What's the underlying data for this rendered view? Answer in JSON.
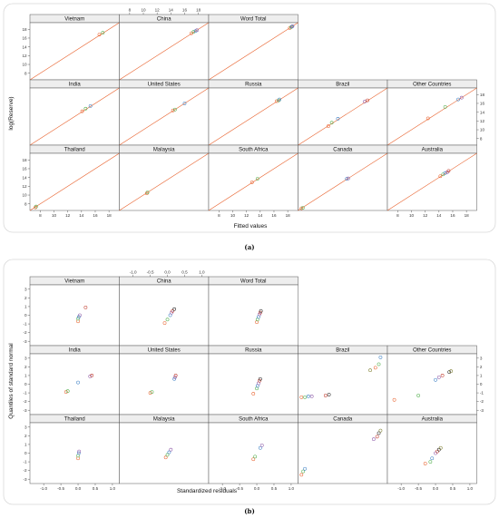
{
  "colors": {
    "page_bg": "#ffffff",
    "figure_border": "#d9d9d9",
    "strip_bg": "#eeeeee",
    "panel_border": "#555555",
    "ref_line": "#e8612c",
    "point_palette": [
      "#e8612c",
      "#4fae4a",
      "#3b7fc4",
      "#8e5aa8",
      "#c0392b",
      "#222222",
      "#7b7b2b"
    ]
  },
  "figure_a": {
    "caption": "(a)",
    "xlabel": "Fitted values",
    "ylabel": "log(Reserve)"
  },
  "figure_b": {
    "caption": "(b)",
    "xlabel": "Standardized residuals",
    "ylabel": "Quantiles of standard normal"
  },
  "chart_data": [
    {
      "type": "scatter",
      "title": "",
      "xlabel": "Fitted values",
      "ylabel": "log(Reserve)",
      "xlim": [
        6.5,
        19.5
      ],
      "ylim": [
        6.5,
        19.5
      ],
      "xticks": [
        "8",
        "10",
        "12",
        "14",
        "16",
        "18"
      ],
      "yticks": [
        "8",
        "10",
        "12",
        "14",
        "16",
        "18"
      ],
      "reference_line": "y = x",
      "grid": false,
      "legend": "none",
      "panels": [
        {
          "name": "Vietnam",
          "points": [
            [
              16.6,
              16.8
            ],
            [
              17.1,
              17.2
            ]
          ]
        },
        {
          "name": "China",
          "points": [
            [
              17.0,
              17.1
            ],
            [
              17.3,
              17.4
            ],
            [
              17.6,
              17.6
            ],
            [
              17.8,
              17.8
            ]
          ]
        },
        {
          "name": "Word Total",
          "points": [
            [
              18.3,
              18.3
            ],
            [
              18.5,
              18.5
            ],
            [
              18.6,
              18.6
            ],
            [
              18.7,
              18.7
            ]
          ]
        },
        {
          "name": "India",
          "points": [
            [
              14.1,
              14.2
            ],
            [
              14.6,
              14.8
            ],
            [
              15.3,
              15.4
            ]
          ]
        },
        {
          "name": "United States",
          "points": [
            [
              14.3,
              14.4
            ],
            [
              14.6,
              14.6
            ],
            [
              16.0,
              16.0
            ]
          ]
        },
        {
          "name": "Russia",
          "points": [
            [
              16.4,
              16.5
            ],
            [
              16.7,
              16.7
            ],
            [
              16.8,
              16.9
            ]
          ]
        },
        {
          "name": "Brazil",
          "points": [
            [
              10.9,
              10.8
            ],
            [
              11.4,
              11.6
            ],
            [
              12.3,
              12.5
            ],
            [
              16.2,
              16.4
            ],
            [
              16.6,
              16.7
            ]
          ]
        },
        {
          "name": "Other Countries",
          "points": [
            [
              12.4,
              12.6
            ],
            [
              14.9,
              15.2
            ],
            [
              16.8,
              16.9
            ],
            [
              17.3,
              17.3
            ]
          ]
        },
        {
          "name": "Thailand",
          "points": [
            [
              7.3,
              7.2
            ],
            [
              7.4,
              7.4
            ]
          ]
        },
        {
          "name": "Malaysia",
          "points": [
            [
              10.5,
              10.4
            ],
            [
              10.6,
              10.6
            ]
          ]
        },
        {
          "name": "South Africa",
          "points": [
            [
              12.8,
              12.9
            ],
            [
              13.6,
              13.7
            ]
          ]
        },
        {
          "name": "Canada",
          "points": [
            [
              7.0,
              7.0
            ],
            [
              7.2,
              7.1
            ],
            [
              13.6,
              13.7
            ],
            [
              13.8,
              13.8
            ]
          ]
        },
        {
          "name": "Australia",
          "points": [
            [
              14.2,
              14.3
            ],
            [
              14.6,
              14.7
            ],
            [
              14.9,
              15.0
            ],
            [
              15.2,
              15.2
            ],
            [
              15.4,
              15.5
            ]
          ]
        }
      ]
    },
    {
      "type": "scatter",
      "title": "",
      "xlabel": "Standardized residuals",
      "ylabel": "Quantiles of standard normal",
      "xlim": [
        -1.4,
        1.2
      ],
      "ylim": [
        -3.5,
        3.5
      ],
      "xticks": [
        "-1.0",
        "-0.5",
        "0.0",
        "0.5",
        "1.0"
      ],
      "yticks": [
        "-3",
        "-2",
        "-1",
        "0",
        "1",
        "2",
        "3"
      ],
      "grid": false,
      "legend": "none",
      "panels": [
        {
          "name": "Vietnam",
          "points": [
            [
              0.0,
              -0.7
            ],
            [
              0.0,
              -0.4
            ],
            [
              0.02,
              -0.2
            ],
            [
              0.05,
              0.0
            ],
            [
              0.22,
              0.9
            ]
          ]
        },
        {
          "name": "China",
          "points": [
            [
              -0.08,
              -0.9
            ],
            [
              0.0,
              -0.5
            ],
            [
              0.08,
              0.0
            ],
            [
              0.12,
              0.3
            ],
            [
              0.15,
              0.5
            ],
            [
              0.2,
              0.7
            ]
          ]
        },
        {
          "name": "Word Total",
          "points": [
            [
              0.0,
              -0.8
            ],
            [
              0.02,
              -0.5
            ],
            [
              0.05,
              -0.2
            ],
            [
              0.08,
              0.1
            ],
            [
              0.1,
              0.3
            ],
            [
              0.12,
              0.5
            ]
          ]
        },
        {
          "name": "India",
          "points": [
            [
              -0.35,
              -0.9
            ],
            [
              -0.3,
              -0.8
            ],
            [
              0.0,
              0.2
            ],
            [
              0.35,
              0.9
            ],
            [
              0.4,
              1.0
            ]
          ]
        },
        {
          "name": "United States",
          "points": [
            [
              -0.5,
              -1.0
            ],
            [
              -0.45,
              -0.9
            ],
            [
              0.2,
              0.6
            ],
            [
              0.22,
              0.8
            ],
            [
              0.24,
              1.0
            ]
          ]
        },
        {
          "name": "Russia",
          "points": [
            [
              -0.1,
              -1.1
            ],
            [
              0.0,
              -0.5
            ],
            [
              0.02,
              -0.2
            ],
            [
              0.05,
              0.1
            ],
            [
              0.08,
              0.4
            ],
            [
              0.1,
              0.6
            ]
          ]
        },
        {
          "name": "Brazil",
          "points": [
            [
              -1.3,
              -1.5
            ],
            [
              -1.2,
              -1.5
            ],
            [
              -1.1,
              -1.4
            ],
            [
              -1.0,
              -1.4
            ],
            [
              -0.6,
              -1.3
            ],
            [
              -0.5,
              -1.2
            ],
            [
              0.7,
              1.6
            ],
            [
              0.85,
              1.9
            ],
            [
              0.95,
              2.3
            ],
            [
              1.0,
              3.1
            ]
          ]
        },
        {
          "name": "Other Countries",
          "points": [
            [
              -1.2,
              -1.8
            ],
            [
              -0.5,
              -1.3
            ],
            [
              0.0,
              0.5
            ],
            [
              0.1,
              0.8
            ],
            [
              0.2,
              1.0
            ],
            [
              0.4,
              1.4
            ],
            [
              0.45,
              1.5
            ]
          ]
        },
        {
          "name": "Thailand",
          "points": [
            [
              0.0,
              -0.6
            ],
            [
              0.0,
              -0.3
            ],
            [
              0.02,
              0.0
            ],
            [
              0.03,
              0.2
            ]
          ]
        },
        {
          "name": "Malaysia",
          "points": [
            [
              -0.05,
              -0.5
            ],
            [
              0.0,
              -0.2
            ],
            [
              0.05,
              0.1
            ],
            [
              0.1,
              0.4
            ]
          ]
        },
        {
          "name": "South Africa",
          "points": [
            [
              -0.1,
              -0.7
            ],
            [
              -0.05,
              -0.4
            ],
            [
              0.1,
              0.6
            ],
            [
              0.15,
              0.9
            ]
          ]
        },
        {
          "name": "Canada",
          "points": [
            [
              -1.3,
              -2.5
            ],
            [
              -1.25,
              -2.1
            ],
            [
              -1.2,
              -1.8
            ],
            [
              0.8,
              1.6
            ],
            [
              0.9,
              1.9
            ],
            [
              0.95,
              2.3
            ],
            [
              1.0,
              2.6
            ]
          ]
        },
        {
          "name": "Australia",
          "points": [
            [
              -0.3,
              -1.2
            ],
            [
              -0.15,
              -1.0
            ],
            [
              -0.1,
              -0.6
            ],
            [
              0.0,
              0.0
            ],
            [
              0.05,
              0.2
            ],
            [
              0.1,
              0.4
            ],
            [
              0.15,
              0.6
            ]
          ]
        }
      ]
    }
  ]
}
